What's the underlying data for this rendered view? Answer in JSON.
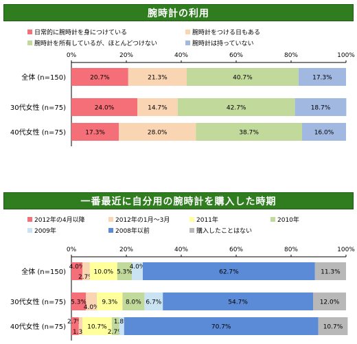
{
  "chart_data": [
    {
      "type": "bar",
      "orientation": "horizontal-stacked-percent",
      "title": "腕時計の利用",
      "categories": [
        "全体 (n=150)",
        "30代女性 (n=75)",
        "40代女性 (n=75)"
      ],
      "xlim": [
        0,
        100
      ],
      "xticks": [
        "0%",
        "20%",
        "40%",
        "60%",
        "80%",
        "100%"
      ],
      "grid": false,
      "legend_position": "top",
      "series": [
        {
          "name": "日常的に腕時計を身につけている",
          "color": "#f56f78",
          "values": [
            20.7,
            24.0,
            17.3
          ],
          "labels": [
            "20.7%",
            "24.0%",
            "17.3%"
          ]
        },
        {
          "name": "腕時計をつける日もある",
          "color": "#f9d5b3",
          "values": [
            21.3,
            14.7,
            28.0
          ],
          "labels": [
            "21.3%",
            "14.7%",
            "28.0%"
          ]
        },
        {
          "name": "腕時計を所有しているが、ほとんどつけない",
          "color": "#c2d99c",
          "values": [
            40.7,
            42.7,
            38.7
          ],
          "labels": [
            "40.7%",
            "42.7%",
            "38.7%"
          ]
        },
        {
          "name": "腕時計は持っていない",
          "color": "#a1b8e0",
          "values": [
            17.3,
            18.7,
            16.0
          ],
          "labels": [
            "17.3%",
            "18.7%",
            "16.0%"
          ]
        }
      ]
    },
    {
      "type": "bar",
      "orientation": "horizontal-stacked-percent",
      "title": "一番最近に自分用の腕時計を購入した時期",
      "categories": [
        "全体 (n=150)",
        "30代女性 (n=75)",
        "40代女性 (n=75)"
      ],
      "xlim": [
        0,
        100
      ],
      "xticks": [
        "0%",
        "20%",
        "40%",
        "60%",
        "80%",
        "100%"
      ],
      "grid": false,
      "legend_position": "top",
      "series": [
        {
          "name": "2012年の4月以降",
          "color": "#f56f78",
          "values": [
            4.0,
            5.3,
            2.7
          ],
          "labels": [
            "4.0%",
            "5.3%",
            "2.7%"
          ]
        },
        {
          "name": "2012年の1月～3月",
          "color": "#f9d5b3",
          "values": [
            2.7,
            4.0,
            1.3
          ],
          "labels": [
            "2.7%",
            "4.0%",
            "1.3%"
          ]
        },
        {
          "name": "2011年",
          "color": "#ffff9c",
          "values": [
            10.0,
            9.3,
            10.7
          ],
          "labels": [
            "10.0%",
            "9.3%",
            "10.7%"
          ]
        },
        {
          "name": "2010年",
          "color": "#c2d99c",
          "values": [
            5.3,
            8.0,
            2.7
          ],
          "labels": [
            "5.3%",
            "8.0%",
            "2.7%"
          ]
        },
        {
          "name": "2009年",
          "color": "#c9e3f2",
          "values": [
            4.0,
            6.7,
            1.8
          ],
          "labels": [
            "4.0%",
            "6.7%",
            "1.8%"
          ]
        },
        {
          "name": "2008年以前",
          "color": "#5b8ad6",
          "values": [
            62.7,
            54.7,
            70.7
          ],
          "labels": [
            "62.7%",
            "54.7%",
            "70.7%"
          ]
        },
        {
          "name": "購入したことはない",
          "color": "#b8b8b8",
          "values": [
            11.3,
            12.0,
            10.7
          ],
          "labels": [
            "11.3%",
            "12.0%",
            "10.7%"
          ]
        }
      ]
    }
  ]
}
